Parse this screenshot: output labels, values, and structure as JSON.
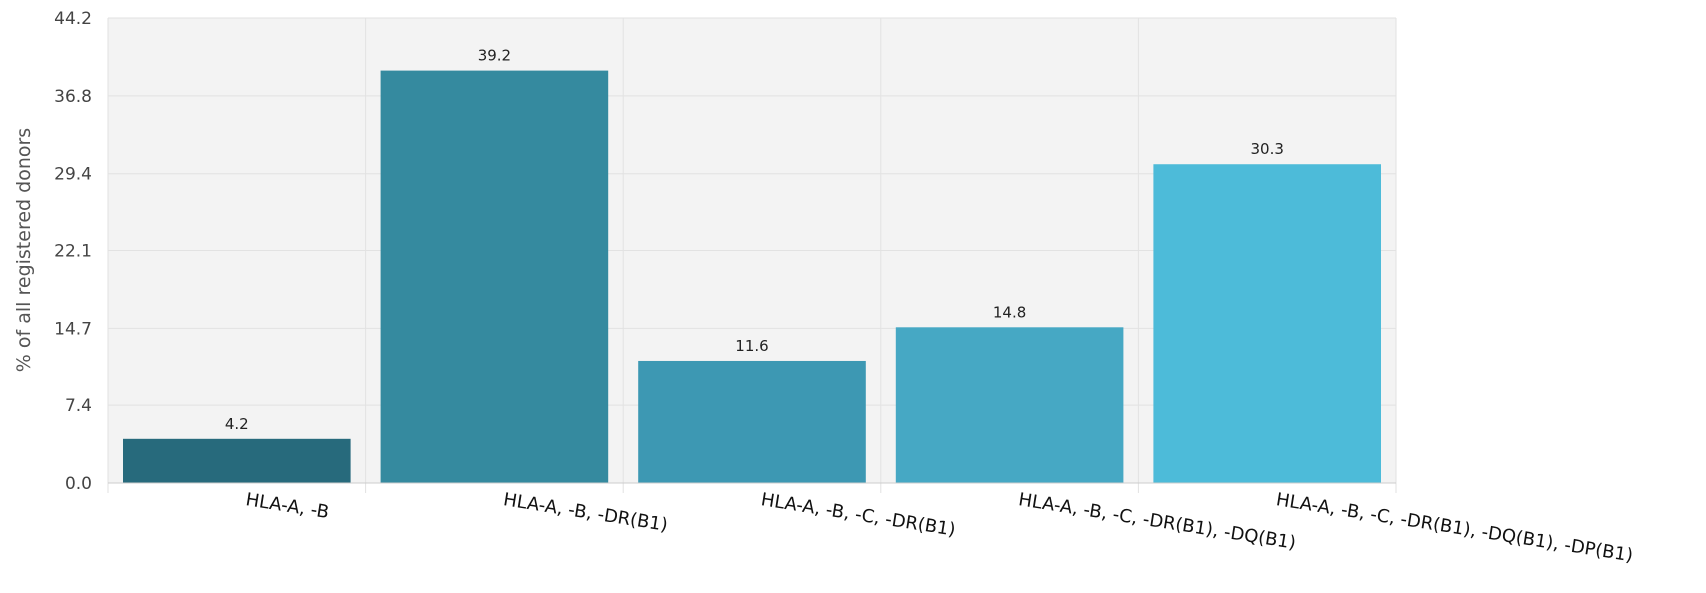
{
  "chart_data": {
    "type": "bar",
    "title": "",
    "xlabel": "",
    "ylabel": "% of all registered donors",
    "ylim": [
      0,
      44.2
    ],
    "yticks": [
      "0.0",
      "7.4",
      "14.7",
      "22.1",
      "29.4",
      "36.8",
      "44.2"
    ],
    "grid": true,
    "categories": [
      "HLA-A, -B",
      "HLA-A, -B, -DR(B1)",
      "HLA-A, -B, -C, -DR(B1)",
      "HLA-A, -B, -C, -DR(B1), -DQ(B1)",
      "HLA-A, -B, -C, -DR(B1), -DQ(B1), -DP(B1)"
    ],
    "values": [
      4.2,
      39.2,
      11.6,
      14.8,
      30.3
    ],
    "data_labels": [
      "4.2",
      "39.2",
      "11.6",
      "14.8",
      "30.3"
    ],
    "colors": [
      "#276a7c",
      "#358a9f",
      "#3d98b3",
      "#46a8c4",
      "#4dbbd9"
    ]
  }
}
